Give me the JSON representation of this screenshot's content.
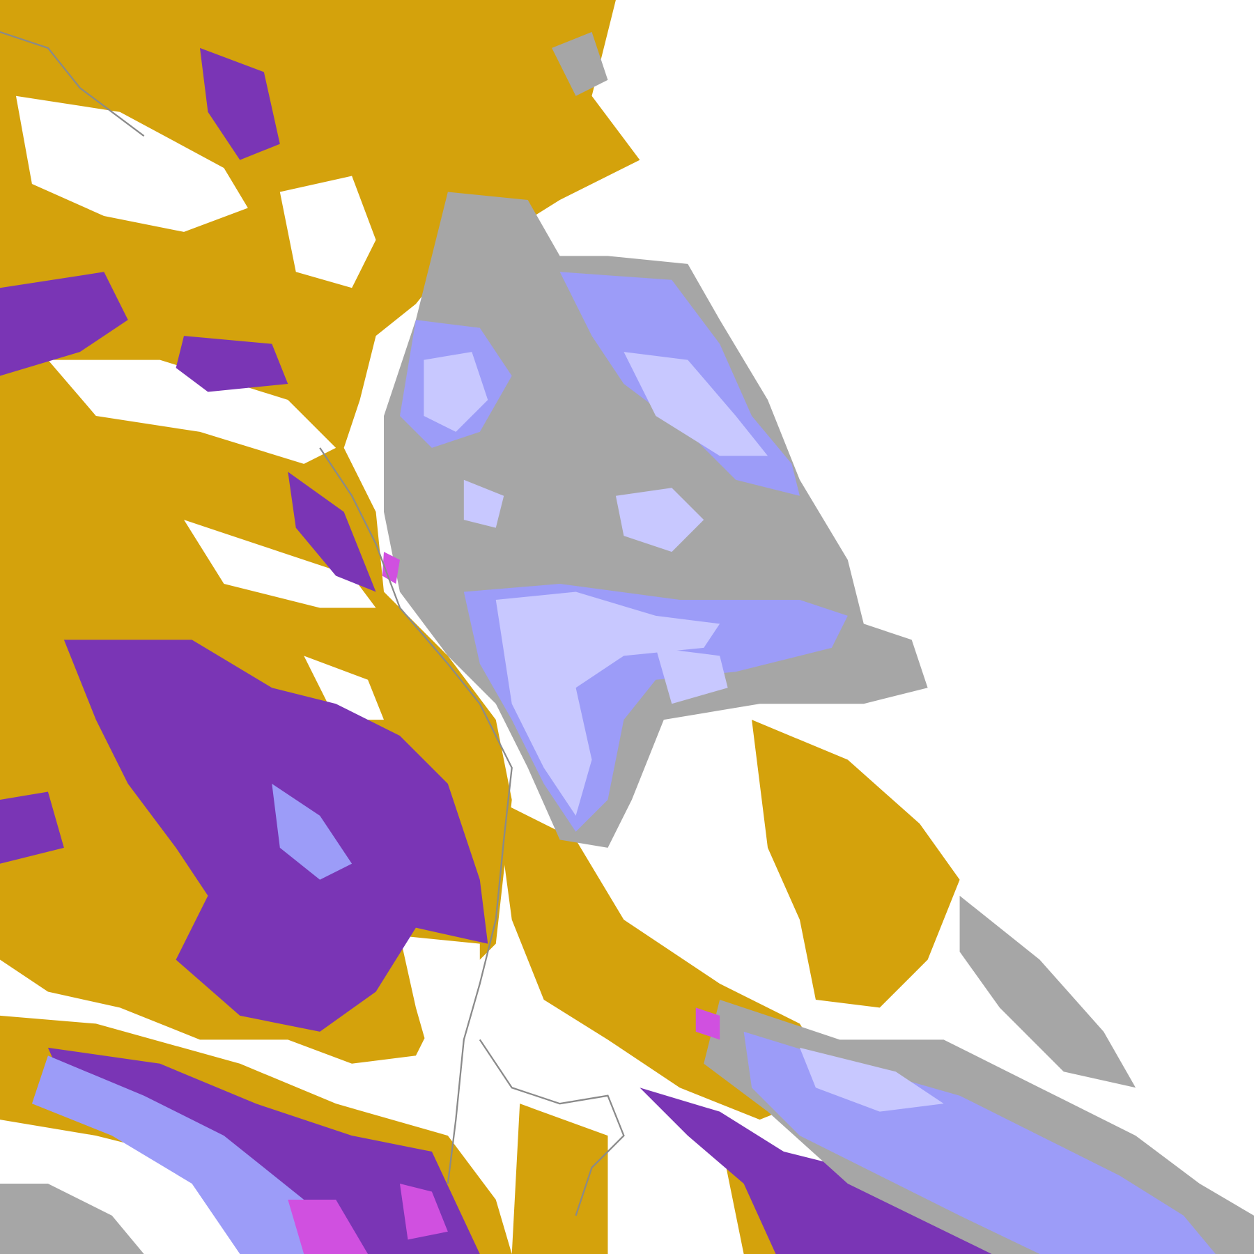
{
  "map": {
    "type": "classified raster",
    "background": "#ffffff",
    "colors": {
      "gold": "#d4a20c",
      "dark_gold": "#b8860b",
      "purple": "#7a35b5",
      "magenta": "#d050e0",
      "periwinkle": "#9c9cf8",
      "lavender": "#c8c8ff",
      "gray": "#999999",
      "light_gray": "#b8b8b8"
    }
  }
}
